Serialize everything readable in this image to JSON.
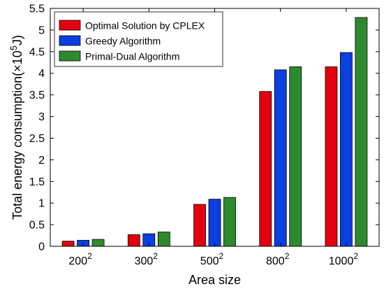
{
  "chart_data": {
    "type": "bar",
    "categories": [
      "200",
      "300",
      "500",
      "800",
      "1000"
    ],
    "category_exponent": "2",
    "series": [
      {
        "name": "Optimal Solution by CPLEX",
        "color": "#e3000f",
        "values": [
          0.12,
          0.27,
          0.97,
          3.58,
          4.15
        ]
      },
      {
        "name": "Greedy Algorithm",
        "color": "#0a3fe0",
        "values": [
          0.14,
          0.29,
          1.09,
          4.08,
          4.48
        ]
      },
      {
        "name": "Primal-Dual Algorithm",
        "color": "#2e8a2e",
        "values": [
          0.16,
          0.33,
          1.13,
          4.15,
          5.29
        ]
      }
    ],
    "xlabel": "Area size",
    "ylabel": {
      "prefix": "Total energy consumption(",
      "times": "×10",
      "exponent": "5",
      "suffix": "J)"
    },
    "ylim": [
      0,
      5.5
    ],
    "yticks": [
      "0",
      "0.5",
      "1",
      "1.5",
      "2",
      "2.5",
      "3",
      "3.5",
      "4",
      "4.5",
      "5",
      "5.5"
    ],
    "grid": false,
    "legend_position": "top-left"
  }
}
